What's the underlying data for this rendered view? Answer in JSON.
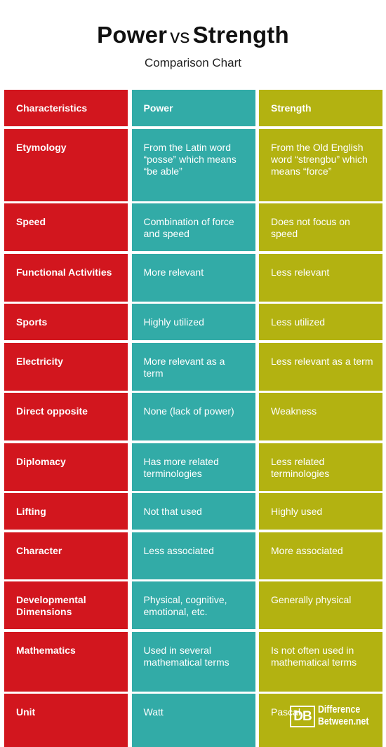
{
  "header": {
    "title_left": "Power",
    "title_vs": "vs",
    "title_right": "Strength",
    "subtitle": "Comparison Chart"
  },
  "table": {
    "columns": [
      "Characteristics",
      "Power",
      "Strength"
    ],
    "rows": [
      [
        "Etymology",
        "From the Latin word “posse” which means “be able”",
        "From the Old English word “strengbu” which means “force”"
      ],
      [
        "Speed",
        "Combination of force and speed",
        "Does not focus on speed"
      ],
      [
        "Functional Activities",
        "More relevant",
        "Less relevant"
      ],
      [
        "Sports",
        "Highly utilized",
        "Less utilized"
      ],
      [
        "Electricity",
        "More relevant as a term",
        "Less relevant as a term"
      ],
      [
        "Direct opposite",
        "None (lack of power)",
        "Weakness"
      ],
      [
        "Diplomacy",
        "Has more related terminologies",
        "Less related terminologies"
      ],
      [
        "Lifting",
        "Not that used",
        "Highly used"
      ],
      [
        "Character",
        "Less associated",
        "More associated"
      ],
      [
        "Developmental Dimensions",
        "Physical, cognitive, emotional, etc.",
        "Generally physical"
      ],
      [
        "Mathematics",
        "Used in several mathematical terms",
        "Is not often used in mathematical terms"
      ],
      [
        "Unit",
        "Watt",
        "Pascal"
      ]
    ]
  },
  "logo": {
    "mark": "DB",
    "line1": "Difference",
    "line2": "Between.net"
  },
  "colors": {
    "characteristics": "#d2161e",
    "power": "#32aba7",
    "strength": "#b3b211"
  }
}
